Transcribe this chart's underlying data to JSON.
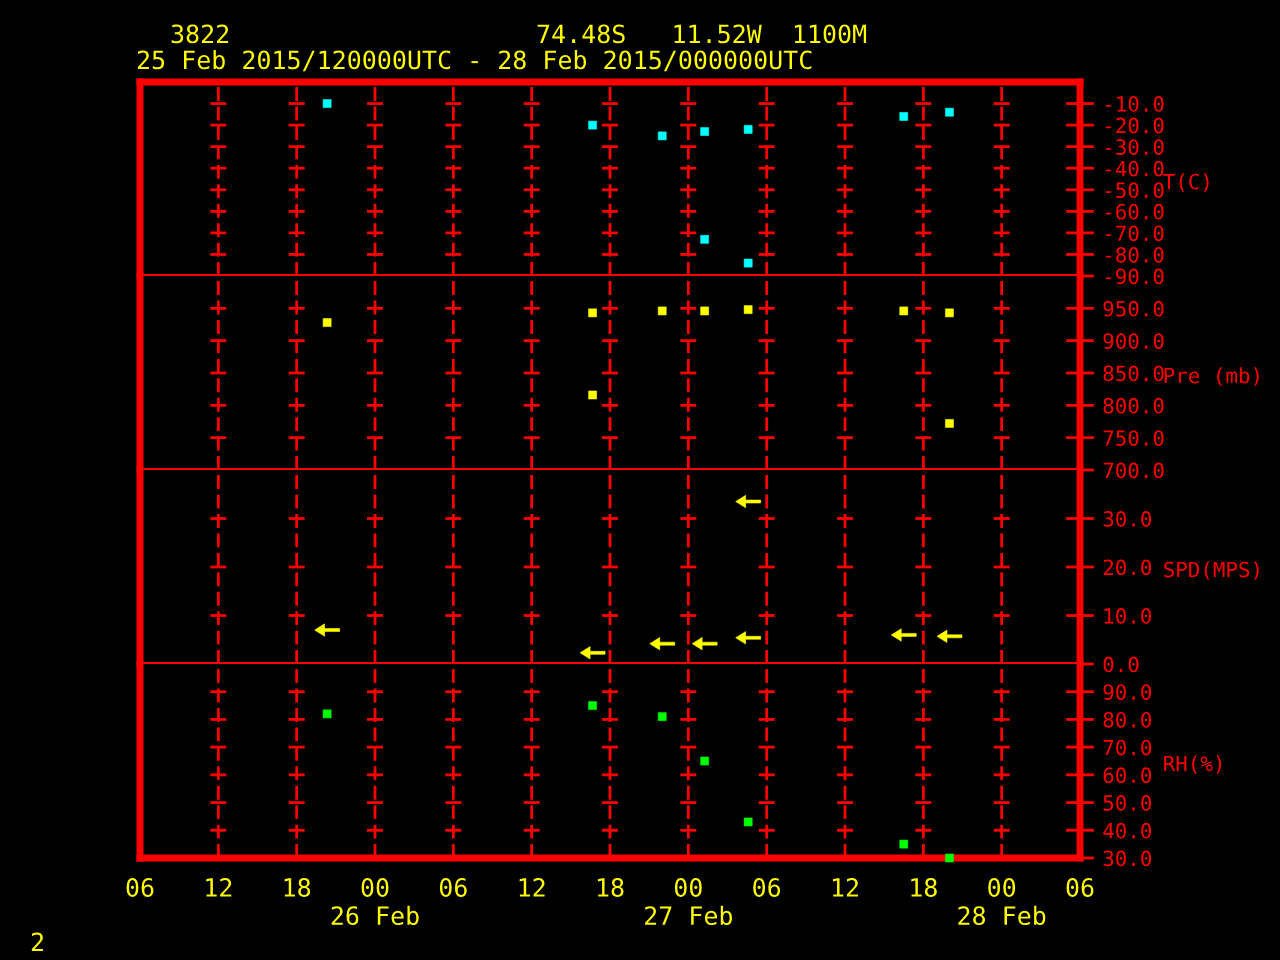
{
  "chart_data": [
    {
      "type": "scatter",
      "title": "3822",
      "subtitle": "25 Feb 2015/120000UTC - 28 Feb 2015/000000UTC",
      "annotations": [
        "74.48S   11.52W  1100M"
      ],
      "ylabel": "T(C)",
      "series": [
        {
          "color": "#00ffff",
          "x": [
            "2015-02-25T20:20",
            "2015-02-26T16:40",
            "2015-02-26T22:00",
            "2015-02-27T01:15",
            "2015-02-27T01:15",
            "2015-02-27T04:35",
            "2015-02-27T04:35",
            "2015-02-27T16:30",
            "2015-02-27T20:00"
          ],
          "values": [
            -10,
            -20,
            -25,
            -23,
            -73,
            -22,
            -84,
            -16,
            -14
          ]
        }
      ],
      "xlim": [
        "2015-02-25T06:00",
        "2015-02-28T06:00"
      ],
      "xticks": [
        {
          "value": "2015-02-25T06:00",
          "label": null
        },
        {
          "value": "2015-02-25T12:00",
          "label": null
        },
        {
          "value": "2015-02-25T18:00",
          "label": null
        },
        {
          "value": "2015-02-26T00:00",
          "label": null
        },
        {
          "value": "2015-02-26T06:00",
          "label": null
        },
        {
          "value": "2015-02-26T12:00",
          "label": null
        },
        {
          "value": "2015-02-26T18:00",
          "label": null
        },
        {
          "value": "2015-02-27T00:00",
          "label": null
        },
        {
          "value": "2015-02-27T06:00",
          "label": null
        },
        {
          "value": "2015-02-27T12:00",
          "label": null
        },
        {
          "value": "2015-02-27T18:00",
          "label": null
        },
        {
          "value": "2015-02-28T00:00",
          "label": null
        },
        {
          "value": "2015-02-28T06:00",
          "label": null
        }
      ],
      "ylim": [
        -90,
        0
      ],
      "yticks": [
        {
          "value": -10,
          "label": "-10.0"
        },
        {
          "value": -20,
          "label": "-20.0"
        },
        {
          "value": -30,
          "label": "-30.0"
        },
        {
          "value": -40,
          "label": "-40.0"
        },
        {
          "value": -50,
          "label": "-50.0"
        },
        {
          "value": -60,
          "label": "-60.0"
        },
        {
          "value": -70,
          "label": "-70.0"
        },
        {
          "value": -80,
          "label": "-80.0"
        },
        {
          "value": -90,
          "label": "-90.0"
        }
      ],
      "tick_labels": "y",
      "grid": "x",
      "marker": "square"
    },
    {
      "type": "scatter",
      "ylabel": "Pre (mb)",
      "series": [
        {
          "color": "#ffff00",
          "x": [
            "2015-02-25T20:20",
            "2015-02-26T16:40",
            "2015-02-26T16:40",
            "2015-02-26T22:00",
            "2015-02-27T01:15",
            "2015-02-27T04:35",
            "2015-02-27T16:30",
            "2015-02-27T20:00",
            "2015-02-27T20:00"
          ],
          "values": [
            928,
            943,
            816,
            946,
            946,
            948,
            946,
            943,
            772
          ]
        }
      ],
      "xlim": [
        "2015-02-25T06:00",
        "2015-02-28T06:00"
      ],
      "xticks": [
        {
          "value": "2015-02-25T06:00",
          "label": null
        },
        {
          "value": "2015-02-25T12:00",
          "label": null
        },
        {
          "value": "2015-02-25T18:00",
          "label": null
        },
        {
          "value": "2015-02-26T00:00",
          "label": null
        },
        {
          "value": "2015-02-26T06:00",
          "label": null
        },
        {
          "value": "2015-02-26T12:00",
          "label": null
        },
        {
          "value": "2015-02-26T18:00",
          "label": null
        },
        {
          "value": "2015-02-27T00:00",
          "label": null
        },
        {
          "value": "2015-02-27T06:00",
          "label": null
        },
        {
          "value": "2015-02-27T12:00",
          "label": null
        },
        {
          "value": "2015-02-27T18:00",
          "label": null
        },
        {
          "value": "2015-02-28T00:00",
          "label": null
        },
        {
          "value": "2015-02-28T06:00",
          "label": null
        }
      ],
      "ylim": [
        700,
        1000
      ],
      "yticks": [
        {
          "value": 950,
          "label": "950.0"
        },
        {
          "value": 900,
          "label": "900.0"
        },
        {
          "value": 850,
          "label": "850.0"
        },
        {
          "value": 800,
          "label": "800.0"
        },
        {
          "value": 750,
          "label": "750.0"
        },
        {
          "value": 700,
          "label": "700.0"
        }
      ],
      "tick_labels": "y",
      "grid": "x",
      "marker": "square"
    },
    {
      "type": "scatter",
      "ylabel": "SPD(MPS)",
      "series": [
        {
          "color": "#ffff00",
          "x": [
            "2015-02-25T20:20",
            "2015-02-26T16:40",
            "2015-02-26T22:00",
            "2015-02-27T01:15",
            "2015-02-27T04:35",
            "2015-02-27T04:35",
            "2015-02-27T16:30",
            "2015-02-27T20:00"
          ],
          "values": [
            7.0,
            2.3,
            4.2,
            4.2,
            5.4,
            33.5,
            6.0,
            5.7
          ]
        }
      ],
      "xlim": [
        "2015-02-25T06:00",
        "2015-02-28T06:00"
      ],
      "xticks": [
        {
          "value": "2015-02-25T06:00",
          "label": null
        },
        {
          "value": "2015-02-25T12:00",
          "label": null
        },
        {
          "value": "2015-02-25T18:00",
          "label": null
        },
        {
          "value": "2015-02-26T00:00",
          "label": null
        },
        {
          "value": "2015-02-26T06:00",
          "label": null
        },
        {
          "value": "2015-02-26T12:00",
          "label": null
        },
        {
          "value": "2015-02-26T18:00",
          "label": null
        },
        {
          "value": "2015-02-27T00:00",
          "label": null
        },
        {
          "value": "2015-02-27T06:00",
          "label": null
        },
        {
          "value": "2015-02-27T12:00",
          "label": null
        },
        {
          "value": "2015-02-27T18:00",
          "label": null
        },
        {
          "value": "2015-02-28T00:00",
          "label": null
        },
        {
          "value": "2015-02-28T06:00",
          "label": null
        }
      ],
      "ylim": [
        0,
        40
      ],
      "yticks": [
        {
          "value": 30,
          "label": "30.0"
        },
        {
          "value": 20,
          "label": "20.0"
        },
        {
          "value": 10,
          "label": "10.0"
        },
        {
          "value": 0,
          "label": "0.0"
        }
      ],
      "tick_labels": "y",
      "grid": "x",
      "marker": "triangle"
    },
    {
      "type": "scatter",
      "ylabel": "RH(%)",
      "annotations": [
        "2"
      ],
      "series": [
        {
          "color": "#00ff00",
          "x": [
            "2015-02-25T20:20",
            "2015-02-26T16:40",
            "2015-02-26T22:00",
            "2015-02-27T01:15",
            "2015-02-27T04:35",
            "2015-02-27T16:30",
            "2015-02-27T20:00"
          ],
          "values": [
            82,
            85,
            81,
            65,
            43,
            35,
            30
          ]
        }
      ],
      "xlim": [
        "2015-02-25T06:00",
        "2015-02-28T06:00"
      ],
      "xticks": [
        {
          "value": "2015-02-25T06:00",
          "label": "06"
        },
        {
          "value": "2015-02-25T12:00",
          "label": "12"
        },
        {
          "value": "2015-02-25T18:00",
          "label": "18"
        },
        {
          "value": "2015-02-26T00:00",
          "label": "00\n26 Feb"
        },
        {
          "value": "2015-02-26T06:00",
          "label": "06"
        },
        {
          "value": "2015-02-26T12:00",
          "label": "12"
        },
        {
          "value": "2015-02-26T18:00",
          "label": "18"
        },
        {
          "value": "2015-02-27T00:00",
          "label": "00\n27 Feb"
        },
        {
          "value": "2015-02-27T06:00",
          "label": "06"
        },
        {
          "value": "2015-02-27T12:00",
          "label": "12"
        },
        {
          "value": "2015-02-27T18:00",
          "label": "18"
        },
        {
          "value": "2015-02-28T00:00",
          "label": "00\n28 Feb"
        },
        {
          "value": "2015-02-28T06:00",
          "label": "06"
        }
      ],
      "ylim": [
        30,
        100
      ],
      "yticks": [
        {
          "value": 90,
          "label": "90.0"
        },
        {
          "value": 80,
          "label": "80.0"
        },
        {
          "value": 70,
          "label": "70.0"
        },
        {
          "value": 60,
          "label": "60.0"
        },
        {
          "value": 50,
          "label": "50.0"
        },
        {
          "value": 40,
          "label": "40.0"
        },
        {
          "value": 30,
          "label": "30.0"
        }
      ],
      "grid": "x",
      "marker": "square"
    }
  ]
}
